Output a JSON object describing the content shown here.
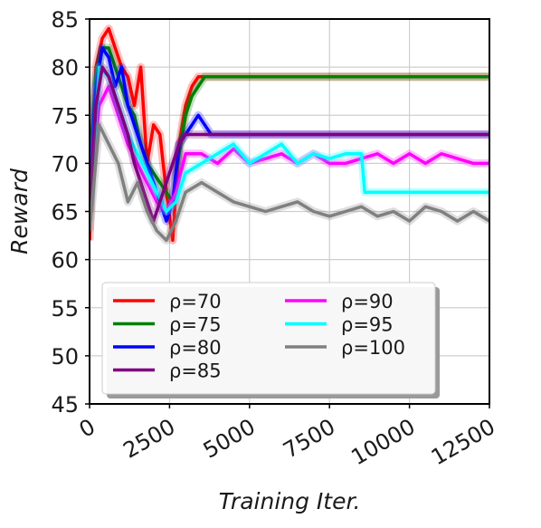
{
  "chart_data": {
    "type": "line",
    "title": "",
    "xlabel": "Training Iter.",
    "ylabel": "Reward",
    "xlim": [
      0,
      12500
    ],
    "ylim": [
      45,
      85
    ],
    "xticks": [
      0,
      2500,
      5000,
      7500,
      10000,
      12500
    ],
    "xtick_labels": [
      "0",
      "2500",
      "5000",
      "7500",
      "10000",
      "12500"
    ],
    "yticks": [
      45,
      50,
      55,
      60,
      65,
      70,
      75,
      80,
      85
    ],
    "ytick_labels": [
      "45",
      "50",
      "55",
      "60",
      "65",
      "70",
      "75",
      "80",
      "85"
    ],
    "grid": true,
    "legend_position": "lower-center",
    "series": [
      {
        "name": "ρ=70",
        "color": "#ff0000",
        "x": [
          0,
          200,
          400,
          600,
          800,
          1000,
          1200,
          1400,
          1600,
          1800,
          2000,
          2200,
          2400,
          2600,
          2800,
          3000,
          3200,
          3400,
          3600,
          3800,
          4000,
          12500
        ],
        "y": [
          62,
          80,
          83,
          84,
          82,
          80,
          79,
          76,
          80,
          70,
          74,
          73,
          67,
          62,
          72,
          76,
          78,
          79,
          79,
          79,
          79,
          79
        ]
      },
      {
        "name": "ρ=75",
        "color": "#008000",
        "x": [
          0,
          200,
          400,
          600,
          800,
          1000,
          1200,
          1400,
          1600,
          1800,
          2000,
          2200,
          2400,
          2600,
          2800,
          3000,
          3200,
          3400,
          3600,
          3800,
          4000,
          12500
        ],
        "y": [
          70,
          79,
          82,
          82,
          80,
          78,
          76,
          75,
          72,
          70,
          69,
          68,
          67,
          66,
          71,
          75,
          77,
          78,
          79,
          79,
          79,
          79
        ]
      },
      {
        "name": "ρ=80",
        "color": "#0000ff",
        "x": [
          0,
          200,
          400,
          600,
          800,
          1000,
          1200,
          1400,
          1600,
          1800,
          2000,
          2200,
          2400,
          2600,
          2800,
          3000,
          3200,
          3400,
          3600,
          3800,
          4000,
          12500
        ],
        "y": [
          68,
          78,
          82,
          81,
          78,
          80,
          76,
          74,
          72,
          70,
          68,
          66,
          64,
          66,
          72,
          73,
          74,
          75,
          74,
          73,
          73,
          73
        ]
      },
      {
        "name": "ρ=85",
        "color": "#800080",
        "x": [
          0,
          200,
          400,
          600,
          800,
          1000,
          1200,
          1400,
          1600,
          1800,
          2000,
          2200,
          2400,
          2600,
          2800,
          3000,
          3500,
          4000,
          12500
        ],
        "y": [
          65,
          76,
          80,
          79,
          77,
          75,
          73,
          70,
          68,
          66,
          64,
          66,
          68,
          70,
          72,
          73,
          73,
          73,
          73
        ]
      },
      {
        "name": "ρ=90",
        "color": "#ff00ff",
        "x": [
          0,
          300,
          600,
          900,
          1200,
          1500,
          1800,
          2100,
          2400,
          2700,
          3000,
          3500,
          4000,
          4500,
          5000,
          5500,
          6000,
          6500,
          7000,
          7500,
          8000,
          8500,
          9000,
          9500,
          10000,
          10500,
          11000,
          11500,
          12000,
          12500
        ],
        "y": [
          66,
          76,
          78,
          75,
          72,
          70,
          68,
          66,
          65,
          67,
          71,
          71,
          70,
          71.5,
          70,
          70.5,
          71,
          70,
          71,
          70,
          70,
          70.5,
          71,
          70,
          71,
          70,
          71,
          70.5,
          70,
          70
        ]
      },
      {
        "name": "ρ=95",
        "color": "#00ffff",
        "x": [
          0,
          300,
          600,
          900,
          1200,
          1500,
          1800,
          2100,
          2400,
          2700,
          3000,
          3500,
          4000,
          4500,
          5000,
          5500,
          6000,
          6500,
          7000,
          7500,
          8000,
          8500,
          8600,
          9000,
          10000,
          11000,
          12000,
          12500
        ],
        "y": [
          64,
          80,
          79,
          76,
          73,
          71,
          69,
          67,
          65,
          66,
          69,
          70,
          71,
          72,
          70,
          71,
          72,
          70,
          71,
          70.5,
          71,
          71,
          67,
          67,
          67,
          67,
          67,
          67
        ]
      },
      {
        "name": "ρ=100",
        "color": "#808080",
        "x": [
          0,
          300,
          600,
          900,
          1200,
          1500,
          1800,
          2100,
          2400,
          2700,
          3000,
          3500,
          4000,
          4500,
          5000,
          5500,
          6000,
          6500,
          7000,
          7500,
          8000,
          8500,
          9000,
          9500,
          10000,
          10500,
          11000,
          11500,
          12000,
          12500
        ],
        "y": [
          63,
          74,
          72,
          70,
          66,
          68,
          65,
          63,
          62,
          64,
          67,
          68,
          67,
          66,
          65.5,
          65,
          65.5,
          66,
          65,
          64.5,
          65,
          65.5,
          64.5,
          65,
          64,
          65.5,
          65,
          64,
          65,
          64
        ]
      }
    ]
  }
}
